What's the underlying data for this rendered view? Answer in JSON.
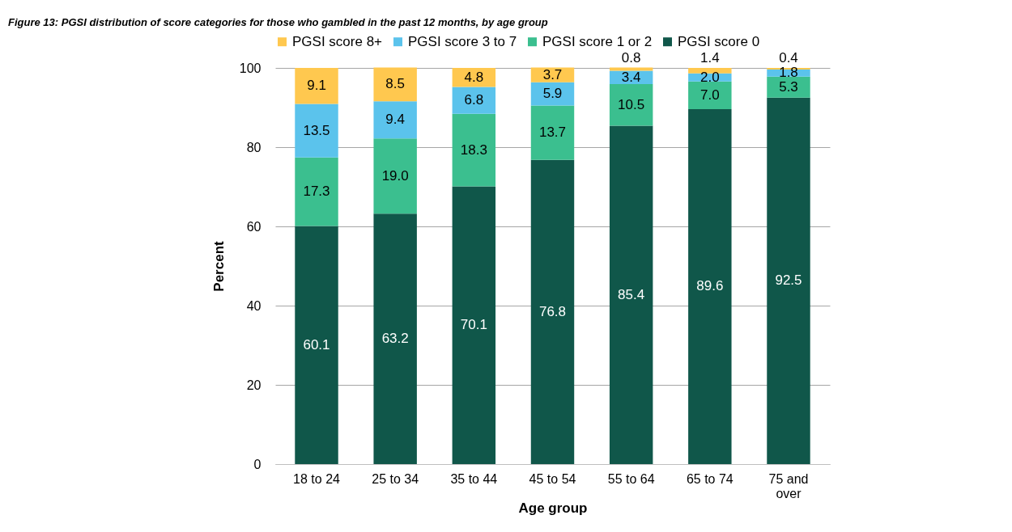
{
  "chart_data": {
    "type": "bar",
    "stacked": true,
    "title": "Figure 13: PGSI distribution of score categories for those who gambled in the past 12 months, by age group",
    "xlabel": "Age group",
    "ylabel": "Percent",
    "categories": [
      "18 to 24",
      "25 to 34",
      "35 to 44",
      "45 to 54",
      "55 to 64",
      "65 to 74",
      "75 and over"
    ],
    "series": [
      {
        "name": "PGSI score 0",
        "color": "#10574a",
        "values": [
          60.1,
          63.2,
          70.1,
          76.8,
          85.4,
          89.6,
          92.5
        ],
        "value_labels": [
          "60.1",
          "63.2",
          "70.1",
          "76.8",
          "85.4",
          "89.6",
          "92.5"
        ]
      },
      {
        "name": "PGSI score 1 or 2",
        "color": "#3bbf8f",
        "values": [
          17.3,
          19.0,
          18.3,
          13.7,
          10.5,
          7.0,
          5.3
        ],
        "value_labels": [
          "17.3",
          "19.0",
          "18.3",
          "13.7",
          "10.5",
          "7.0",
          "5.3"
        ]
      },
      {
        "name": "PGSI score 3 to 7",
        "color": "#5bc3ec",
        "values": [
          13.5,
          9.4,
          6.8,
          5.9,
          3.4,
          2.0,
          1.8
        ],
        "value_labels": [
          "13.5",
          "9.4",
          "6.8",
          "5.9",
          "3.4",
          "2.0",
          "1.8"
        ]
      },
      {
        "name": "PGSI score 8+",
        "color": "#ffc84f",
        "values": [
          9.1,
          8.5,
          4.8,
          3.7,
          0.8,
          1.4,
          0.4
        ],
        "value_labels": [
          "9.1",
          "8.5",
          "4.8",
          "3.7",
          "0.8",
          "1.4",
          "0.4"
        ]
      }
    ],
    "ylim": [
      0,
      100
    ],
    "yticks": [
      0,
      20,
      40,
      60,
      80,
      100
    ],
    "grid": "y",
    "legend": "top"
  }
}
